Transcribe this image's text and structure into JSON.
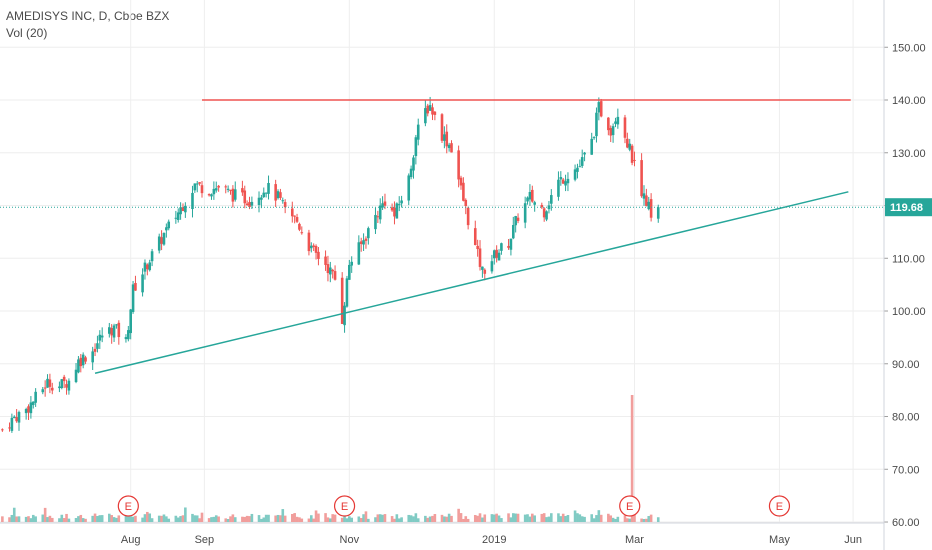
{
  "legend": {
    "symbol_line": "AMEDISYS INC, D, Cboe BZX",
    "volume_line": "Vol (20)"
  },
  "colors": {
    "up": "#26a69a",
    "down": "#ef5350",
    "vol_up": "#80cbc4",
    "vol_down": "#f19e9c",
    "resistance": "#ef5350",
    "trendline": "#26a69a",
    "last_price_line": "#26a69a",
    "earnings": "#e53935",
    "grid": "#eeeeee"
  },
  "chart_data": {
    "type": "candlestick",
    "x_ticks": [
      "Aug",
      "Sep",
      "Nov",
      "2019",
      "Mar",
      "May",
      "Jun"
    ],
    "y_ticks": [
      "150.00",
      "140.00",
      "130.00",
      "120.00",
      "110.00",
      "100.00",
      "90.00",
      "80.00",
      "70.00",
      "60.00"
    ],
    "ylim": [
      59,
      156
    ],
    "xlim": [
      "2018-06-07",
      "2019-06-14"
    ],
    "last_price": 119.68,
    "last_price_label": "119.68",
    "closes": [
      [
        "2018-06-08",
        77.5
      ],
      [
        "2018-06-13",
        79.8
      ],
      [
        "2018-06-18",
        81.3
      ],
      [
        "2018-06-22",
        83.5
      ],
      [
        "2018-06-27",
        86.5
      ],
      [
        "2018-07-02",
        85.8
      ],
      [
        "2018-07-06",
        86.8
      ],
      [
        "2018-07-10",
        90.5
      ],
      [
        "2018-07-16",
        92.5
      ],
      [
        "2018-07-20",
        95.5
      ],
      [
        "2018-07-25",
        96.8
      ],
      [
        "2018-07-30",
        94.2
      ],
      [
        "2018-08-02",
        104.0
      ],
      [
        "2018-08-08",
        109.0
      ],
      [
        "2018-08-15",
        114.5
      ],
      [
        "2018-08-22",
        119.5
      ],
      [
        "2018-08-28",
        124.0
      ],
      [
        "2018-09-03",
        123.0
      ],
      [
        "2018-09-07",
        123.5
      ],
      [
        "2018-09-13",
        122.0
      ],
      [
        "2018-09-20",
        121.0
      ],
      [
        "2018-09-27",
        123.5
      ],
      [
        "2018-10-02",
        121.5
      ],
      [
        "2018-10-05",
        119.0
      ],
      [
        "2018-10-10",
        117.0
      ],
      [
        "2018-10-16",
        111.5
      ],
      [
        "2018-10-22",
        109.0
      ],
      [
        "2018-10-26",
        106.0
      ],
      [
        "2018-10-29",
        98.5
      ],
      [
        "2018-11-01",
        109.0
      ],
      [
        "2018-11-06",
        112.5
      ],
      [
        "2018-11-12",
        118.0
      ],
      [
        "2018-11-16",
        121.0
      ],
      [
        "2018-11-20",
        118.0
      ],
      [
        "2018-11-26",
        125.0
      ],
      [
        "2018-11-29",
        133.0
      ],
      [
        "2018-12-03",
        138.0
      ],
      [
        "2018-12-05",
        139.0
      ],
      [
        "2018-12-10",
        133.5
      ],
      [
        "2018-12-14",
        131.0
      ],
      [
        "2018-12-19",
        121.0
      ],
      [
        "2018-12-24",
        112.0
      ],
      [
        "2018-12-27",
        107.5
      ],
      [
        "2019-01-02",
        111.0
      ],
      [
        "2019-01-07",
        113.0
      ],
      [
        "2019-01-11",
        118.0
      ],
      [
        "2019-01-16",
        121.5
      ],
      [
        "2019-01-22",
        119.0
      ],
      [
        "2019-01-28",
        124.5
      ],
      [
        "2019-02-01",
        126.0
      ],
      [
        "2019-02-06",
        127.5
      ],
      [
        "2019-02-11",
        132.0
      ],
      [
        "2019-02-14",
        138.5
      ],
      [
        "2019-02-19",
        134.5
      ],
      [
        "2019-02-22",
        138.0
      ],
      [
        "2019-02-27",
        130.5
      ],
      [
        "2019-03-04",
        123.0
      ],
      [
        "2019-03-08",
        118.5
      ],
      [
        "2019-03-11",
        119.68
      ]
    ],
    "volume_spike_date": "2019-02-28",
    "earnings_markers": [
      {
        "date": "2018-07-31",
        "label": "E"
      },
      {
        "date": "2018-10-30",
        "label": "E"
      },
      {
        "date": "2019-02-27",
        "label": "E"
      },
      {
        "date": "2019-05-01",
        "label": "E"
      }
    ],
    "resistance_line": {
      "start": "2018-08-31",
      "end": "2019-05-31",
      "price": 140.0
    },
    "trend_line": {
      "start": [
        "2018-07-17",
        88.2
      ],
      "end": [
        "2019-05-30",
        122.6
      ]
    }
  }
}
